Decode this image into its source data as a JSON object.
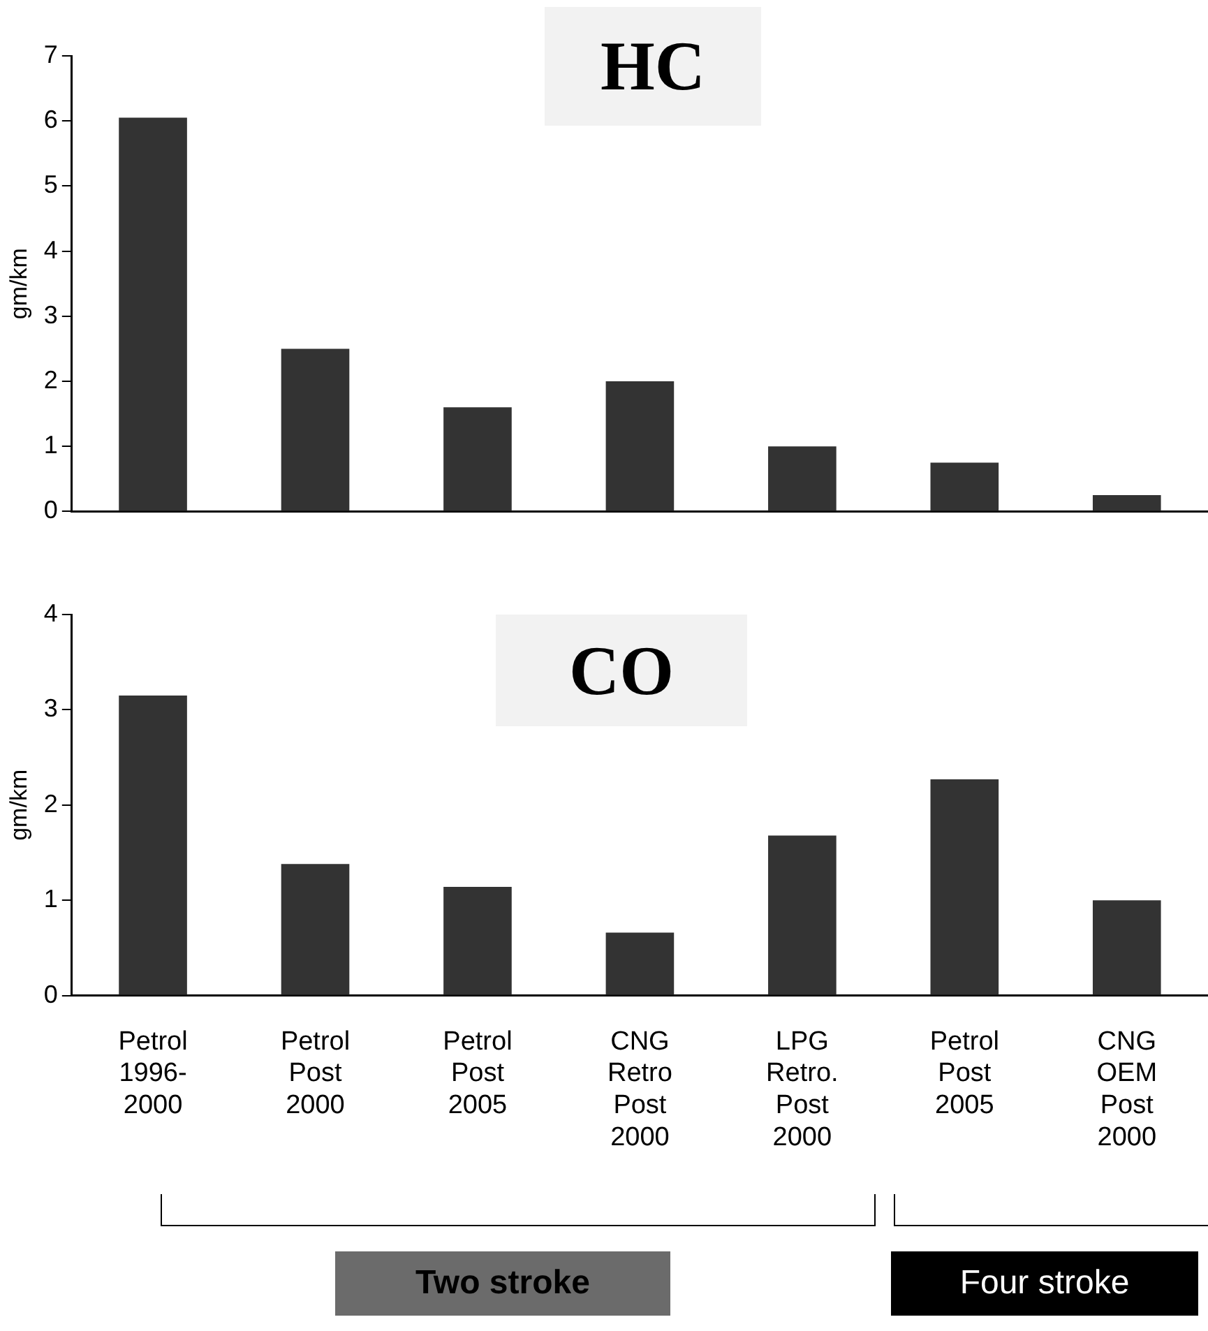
{
  "chart_data": [
    {
      "type": "bar",
      "title": "HC",
      "ylabel": "gm/km",
      "categories": [
        null,
        null,
        null,
        null,
        null,
        null,
        null
      ],
      "values": [
        6.05,
        2.5,
        1.6,
        2.0,
        1.0,
        0.75,
        0.25
      ],
      "color": "#333333",
      "ylim": [
        0,
        7
      ],
      "yticks": [
        0,
        1,
        2,
        3,
        4,
        5,
        6,
        7
      ],
      "grid": false,
      "legend": false,
      "tick_labels": "y"
    },
    {
      "type": "bar",
      "title": "CO",
      "ylabel": "gm/km",
      "categories": [
        "Petrol\n1996-\n2000",
        "Petrol\nPost\n2000",
        "Petrol\nPost\n2005",
        "CNG\nRetro\nPost\n2000",
        "LPG\nRetro.\nPost\n2000",
        "Petrol\nPost\n2005",
        "CNG\nOEM\nPost\n2000"
      ],
      "values": [
        3.15,
        1.38,
        1.14,
        0.66,
        1.68,
        2.27,
        1.0
      ],
      "color": "#333333",
      "ylim": [
        0,
        4
      ],
      "yticks": [
        0,
        1,
        2,
        3,
        4
      ],
      "grid": false,
      "legend": false,
      "annotations": [
        "Two stroke",
        "Four stroke"
      ]
    }
  ]
}
